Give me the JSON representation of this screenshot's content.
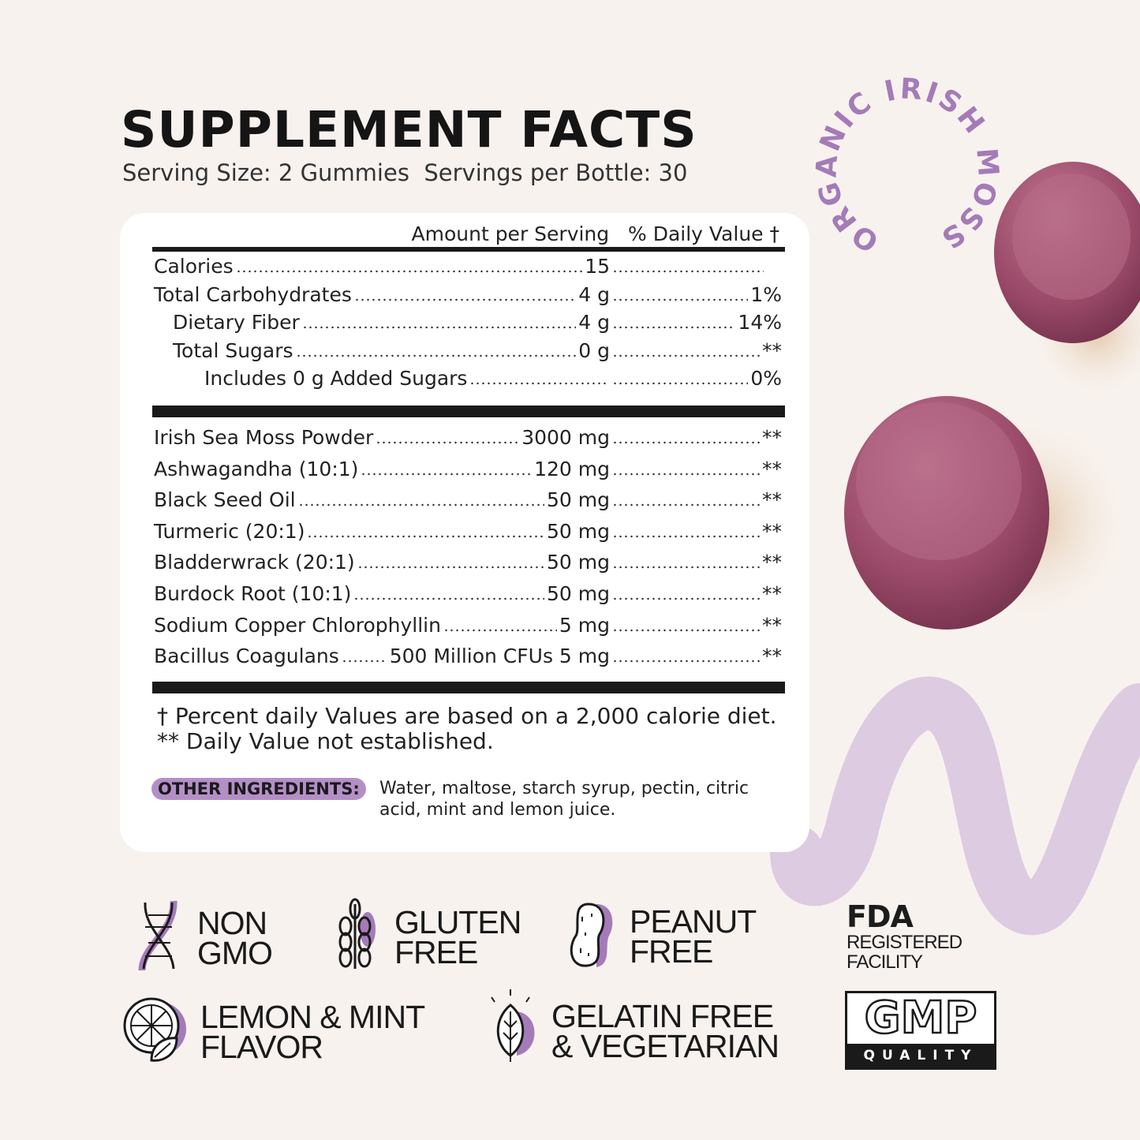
{
  "header": {
    "title": "SUPPLEMENT FACTS",
    "serving_info": "Serving Size: 2 Gummies  Servings per Bottle: 30",
    "badge_circle": "ORGANIC IRISH MOSS"
  },
  "table": {
    "column_header": "Amount per Serving   % Daily Value †",
    "nutrients": [
      {
        "name": "Calories",
        "amount": "15",
        "dv": ""
      },
      {
        "name": "Total Carbohydrates",
        "amount": "4 g",
        "dv": "1%"
      },
      {
        "name": "Dietary Fiber",
        "amount": "4 g",
        "dv": "14%"
      },
      {
        "name": "Total Sugars",
        "amount": "0 g",
        "dv": "**"
      },
      {
        "name": "Includes 0 g Added Sugars",
        "amount": "",
        "dv": "0%"
      }
    ],
    "ingredients": [
      {
        "name": "Irish Sea Moss Powder",
        "amount": "3000 mg",
        "dv": "**"
      },
      {
        "name": "Ashwagandha (10:1)",
        "amount": "120 mg",
        "dv": "**"
      },
      {
        "name": "Black Seed Oil",
        "amount": "50 mg",
        "dv": "**"
      },
      {
        "name": "Turmeric (20:1)",
        "amount": "50 mg",
        "dv": "**"
      },
      {
        "name": "Bladderwrack (20:1)",
        "amount": "50 mg",
        "dv": "**"
      },
      {
        "name": "Burdock Root (10:1)",
        "amount": "50 mg",
        "dv": "**"
      },
      {
        "name": "Sodium Copper Chlorophyllin",
        "amount": "5 mg",
        "dv": "**"
      },
      {
        "name": "Bacillus Coagulans",
        "amount": "500 Million CFUs 5 mg",
        "dv": "**"
      }
    ],
    "footnote_1": "† Percent daily Values are based on a 2,000 calorie diet.",
    "footnote_2": "** Daily Value not established.",
    "other_ingredients_label": "OTHER INGREDIENTS:",
    "other_ingredients": "Water, maltose, starch syrup, pectin, citric acid, mint and lemon juice."
  },
  "badges": [
    {
      "icon": "dna-icon",
      "line1": "NON",
      "line2": "GMO"
    },
    {
      "icon": "wheat-icon",
      "line1": "GLUTEN",
      "line2": "FREE"
    },
    {
      "icon": "peanut-icon",
      "line1": "PEANUT",
      "line2": "FREE"
    },
    {
      "icon": "lemon-mint-icon",
      "line1": "LEMON & MINT",
      "line2": "FLAVOR"
    },
    {
      "icon": "leaf-icon",
      "line1": "GELATIN FREE",
      "line2": "& VEGETARIAN"
    }
  ],
  "fda": {
    "title": "FDA",
    "line1": "REGISTERED",
    "line2": "FACILITY"
  },
  "gmp": {
    "title": "GMP",
    "subtitle": "QUALITY"
  },
  "colors": {
    "background": "#f8f2ee",
    "accent_purple": "#a47bb8",
    "gummy": "#9e4f6c",
    "wave": "#ddcbe2"
  }
}
